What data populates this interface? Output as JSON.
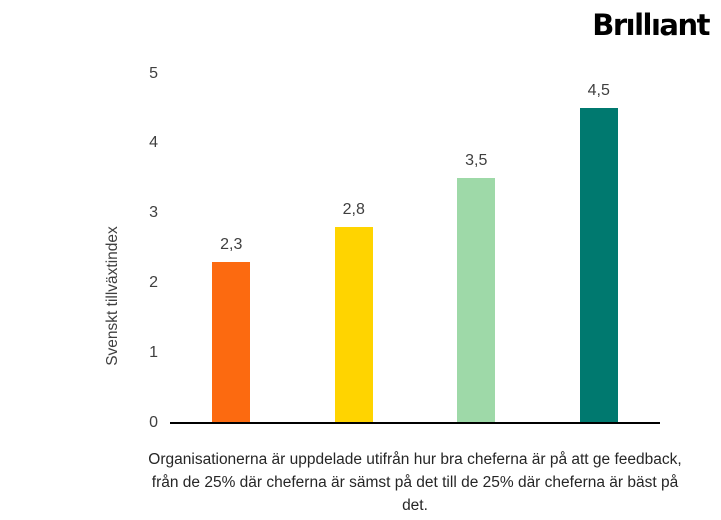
{
  "logo": {
    "text": "Brıllıant"
  },
  "chart_data": {
    "type": "bar",
    "title": "",
    "xlabel": "",
    "ylabel": "Svenskt tillväxtindex",
    "categories": [
      "",
      "",
      "",
      ""
    ],
    "values": [
      2.3,
      2.8,
      3.5,
      4.5
    ],
    "value_labels": [
      "2,3",
      "2,8",
      "3,5",
      "4,5"
    ],
    "bar_colors": [
      "#FC6A10",
      "#FFD400",
      "#9ED9A8",
      "#00796F"
    ],
    "ylim": [
      0,
      5
    ],
    "yticks": [
      0,
      1,
      2,
      3,
      4,
      5
    ],
    "ytick_labels": [
      "0",
      "1",
      "2",
      "3",
      "4",
      "5"
    ],
    "grid": false,
    "legend": "none",
    "axis_line_color": "#000000"
  },
  "caption": {
    "text": "Organisationerna är uppdelade utifrån hur bra cheferna är på att ge feedback, från de 25% där cheferna är sämst på det till de 25% där cheferna är bäst på det."
  }
}
